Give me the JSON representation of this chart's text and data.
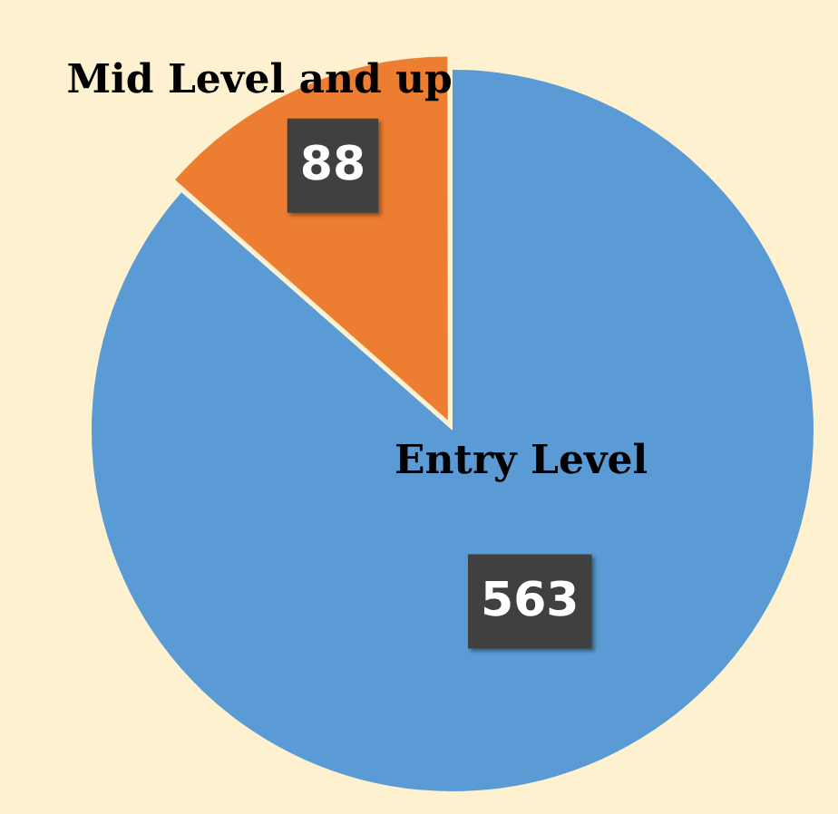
{
  "chart_data": {
    "type": "pie",
    "categories": [
      "Entry Level",
      "Mid Level and up"
    ],
    "values": [
      563,
      88
    ],
    "colors": [
      "#5b9bd5",
      "#ed7d31"
    ],
    "data_labels": true
  }
}
